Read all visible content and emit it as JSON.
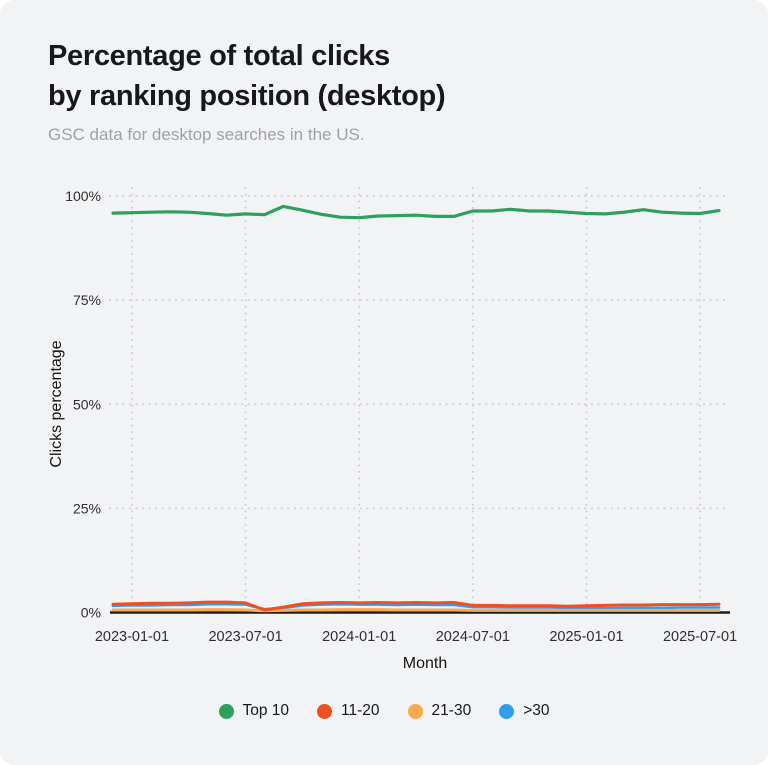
{
  "header": {
    "title_line1": "Percentage of total clicks",
    "title_line2": "by ranking position (desktop)",
    "subtitle": "GSC data for desktop searches in the US."
  },
  "axes": {
    "xlabel": "Month",
    "ylabel": "Clicks percentage"
  },
  "chart_data": {
    "type": "line",
    "title": "Percentage of total clicks by ranking position (desktop)",
    "subtitle": "GSC data for desktop searches in the US.",
    "xlabel": "Month",
    "ylabel": "Clicks percentage",
    "ylim": [
      0,
      100
    ],
    "grid": "dotted",
    "legend_position": "bottom",
    "x": [
      "2022-12-01",
      "2023-01-01",
      "2023-02-01",
      "2023-03-01",
      "2023-04-01",
      "2023-05-01",
      "2023-06-01",
      "2023-07-01",
      "2023-08-01",
      "2023-09-01",
      "2023-10-01",
      "2023-11-01",
      "2023-12-01",
      "2024-01-01",
      "2024-02-01",
      "2024-03-01",
      "2024-04-01",
      "2024-05-01",
      "2024-06-01",
      "2024-07-01",
      "2024-08-01",
      "2024-09-01",
      "2024-10-01",
      "2024-11-01",
      "2024-12-01",
      "2025-01-01",
      "2025-02-01",
      "2025-03-01",
      "2025-04-01",
      "2025-05-01",
      "2025-06-01",
      "2025-07-01",
      "2025-08-01"
    ],
    "x_tick_labels": [
      "2023-01-01",
      "2023-07-01",
      "2024-01-01",
      "2024-07-01",
      "2025-01-01",
      "2025-07-01"
    ],
    "x_tick_indices": [
      1,
      7,
      13,
      19,
      25,
      31
    ],
    "y_tick_labels": [
      "0%",
      "25%",
      "50%",
      "75%",
      "100%"
    ],
    "y_tick_values": [
      0,
      25,
      50,
      75,
      100
    ],
    "series": [
      {
        "name": "Top 10",
        "color": "#2ba15d",
        "values": [
          95.9,
          96.0,
          96.1,
          96.2,
          96.1,
          95.8,
          95.4,
          95.7,
          95.5,
          97.5,
          96.6,
          95.6,
          94.9,
          94.8,
          95.2,
          95.3,
          95.4,
          95.1,
          95.1,
          96.4,
          96.4,
          96.8,
          96.4,
          96.4,
          96.1,
          95.8,
          95.7,
          96.1,
          96.7,
          96.1,
          95.9,
          95.8,
          96.5
        ]
      },
      {
        "name": "11-20",
        "color": "#f14e22",
        "values": [
          2.0,
          2.1,
          2.2,
          2.2,
          2.3,
          2.5,
          2.5,
          2.3,
          0.6,
          1.3,
          2.1,
          2.3,
          2.4,
          2.3,
          2.4,
          2.3,
          2.4,
          2.3,
          2.4,
          1.7,
          1.7,
          1.6,
          1.6,
          1.6,
          1.5,
          1.6,
          1.7,
          1.8,
          1.8,
          1.9,
          1.9,
          1.9,
          2.0
        ]
      },
      {
        "name": "21-30",
        "color": "#f9a94f",
        "values": [
          0.6,
          0.6,
          0.6,
          0.6,
          0.6,
          0.7,
          0.7,
          0.6,
          0.4,
          0.5,
          0.6,
          0.6,
          0.7,
          0.7,
          0.7,
          0.6,
          0.6,
          0.6,
          0.6,
          0.5,
          0.5,
          0.5,
          0.5,
          0.5,
          0.5,
          0.5,
          0.5,
          0.5,
          0.5,
          0.5,
          0.5,
          0.5,
          0.5
        ]
      },
      {
        "name": ">30",
        "color": "#2d9ff2",
        "values": [
          1.6,
          1.7,
          1.7,
          1.8,
          1.8,
          2.0,
          2.0,
          1.9,
          0.8,
          1.1,
          1.7,
          1.9,
          2.0,
          1.9,
          1.9,
          1.8,
          1.9,
          1.8,
          1.8,
          1.3,
          1.3,
          1.2,
          1.2,
          1.2,
          1.1,
          1.0,
          1.0,
          1.1,
          1.1,
          1.1,
          1.2,
          1.2,
          1.2
        ]
      }
    ],
    "colors": {
      "background": "#f2f3f4",
      "gridline": "#cfcfd3",
      "zero_line": "#1c1c1e",
      "tick_text": "#2e2e30",
      "axis_title_text": "#141414"
    }
  }
}
